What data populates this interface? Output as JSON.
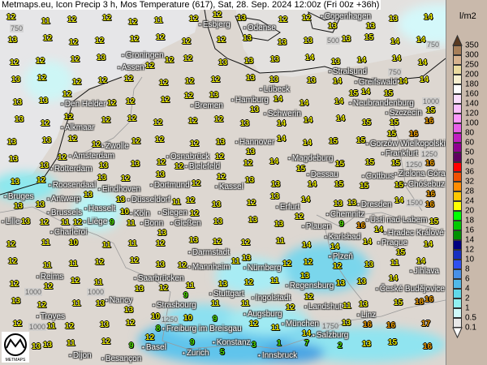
{
  "title": "Metmaps.eu, Icon Precip 3 h, Mos Temperature (617), Sat, 28. Sep. 2024 12:00z (Fri 00z +36h)",
  "logo_text": "METMAPS",
  "legend": {
    "unit": "l/m2",
    "labels": [
      "350",
      "300",
      "250",
      "200",
      "180",
      "160",
      "140",
      "120",
      "100",
      "80",
      "60",
      "50",
      "40",
      "36",
      "32",
      "28",
      "24",
      "20",
      "18",
      "16",
      "14",
      "12",
      "10",
      "8",
      "6",
      "4",
      "2",
      "1",
      "0.5",
      "0.1"
    ],
    "colors": [
      "#a8805a",
      "#d8b490",
      "#ecdca0",
      "#f8f0d0",
      "#ffffff",
      "#fce0fc",
      "#fcc0fc",
      "#fc98fc",
      "#e860e8",
      "#c020c0",
      "#900090",
      "#600060",
      "#ff0000",
      "#f05000",
      "#ff8c00",
      "#ffc800",
      "#ffff00",
      "#00ff00",
      "#00c800",
      "#009000",
      "#000080",
      "#1830c0",
      "#3050f0",
      "#4890e8",
      "#50b8e8",
      "#60d8e8",
      "#90f0f0",
      "#d0fafa",
      "#e8e8e8"
    ]
  },
  "temp_colors": {
    "cool": "#50e000",
    "mild": "#f0f000",
    "warm": "#f0a000"
  },
  "cities": [
    "Copenhagen",
    "Odense",
    "Esbjerg",
    "Stralsund",
    "Greifswald",
    "Lübeck",
    "Hamburg",
    "Bremen",
    "Groningen",
    "Assen",
    "Den Helder",
    "Alkmaar",
    "Zwolle",
    "Amsterdam",
    "Osnabrück",
    "Bielefeld",
    "Rotterdam",
    "Neubrandenburg",
    "Szczecin",
    "Gorzów Wielkopolski",
    "Frankfurt",
    "Zielona Góra",
    "Cottbus",
    "Chóśebuz",
    "Dessau",
    "Dresden",
    "Chemnitz",
    "Ústí nad Labem",
    "Plauen",
    "Karlsbad",
    "Prague",
    "Hradec Králové",
    "Plzeň",
    "Jihlava",
    "České Budějovice",
    "Linz",
    "Salzburg",
    "Innsbruck",
    "Regensburg",
    "Nürnberg",
    "Landshut",
    "Augsburg",
    "München",
    "Ingolstadt",
    "Roosendaal",
    "Eindhoven",
    "Antwerp",
    "Brussels",
    "Hasselt",
    "Liège",
    "Bruges",
    "Lille",
    "Charleroi",
    "Köln",
    "Bonn",
    "Düsseldorf",
    "Dortmund",
    "Kassel",
    "Gießen",
    "Siegen",
    "Erfurt",
    "Darmstadt",
    "Mannheim",
    "Saarbrücken",
    "Strasbourg",
    "Stuttgart",
    "Freiburg im Breisgau",
    "Basel",
    "Zurich",
    "Konstanz",
    "Reims",
    "Nancy",
    "Troyes",
    "Dijon",
    "Besançon",
    "Schwerin",
    "Magdeburg",
    "Hannover"
  ],
  "isobars": [
    "750",
    "500",
    "750",
    "750",
    "1000",
    "1250",
    "1250",
    "1500",
    "1000",
    "1000",
    "1250",
    "1000",
    "1750"
  ],
  "temperatures": [
    [
      12,
      11,
      12,
      12,
      12,
      11,
      12,
      12,
      13,
      12,
      12,
      13,
      13,
      13,
      14
    ],
    [
      13,
      12,
      12,
      12,
      12,
      12,
      12,
      12,
      13,
      13,
      13,
      13,
      15,
      14,
      14
    ],
    [
      12,
      12,
      12,
      13,
      12,
      12,
      12,
      13,
      13,
      13,
      14,
      13,
      14,
      14,
      14
    ],
    [
      13,
      12,
      12,
      12,
      12,
      12,
      12,
      12,
      13,
      13,
      13,
      14,
      14,
      14,
      14
    ],
    [
      13,
      13,
      12,
      12,
      12,
      12,
      12,
      13,
      13,
      14,
      14,
      14,
      15,
      15,
      15
    ],
    [
      13,
      12,
      12,
      12,
      12,
      12,
      12,
      12,
      13,
      14,
      14,
      14,
      15,
      15,
      16
    ],
    [
      13,
      13,
      12,
      12,
      12,
      12,
      12,
      13,
      13,
      14,
      14,
      15,
      15,
      15,
      16
    ],
    [
      13,
      13,
      12,
      13,
      13,
      12,
      12,
      12,
      12,
      14,
      15,
      15,
      15,
      15,
      16
    ],
    [
      13,
      12,
      13,
      13,
      12,
      13,
      12,
      12,
      13,
      13,
      14,
      15,
      15,
      15,
      16
    ],
    [
      13,
      13,
      12,
      13,
      10,
      11,
      12,
      13,
      12,
      13,
      14,
      13,
      13,
      14,
      16
    ],
    [
      13,
      12,
      11,
      9,
      11,
      13,
      12,
      13,
      13,
      13,
      12,
      9,
      16,
      14,
      15
    ],
    [
      12,
      11,
      10,
      11,
      11,
      12,
      13,
      12,
      12,
      11,
      14,
      14,
      14,
      15,
      14
    ],
    [
      12,
      11,
      11,
      12,
      12,
      13,
      12,
      11,
      13,
      12,
      12,
      12,
      13,
      11,
      14
    ],
    [
      12,
      12,
      12,
      11,
      13,
      12,
      11,
      13,
      12,
      11,
      13,
      13,
      13,
      14,
      16
    ],
    [
      13,
      12,
      11,
      13,
      13,
      10,
      9,
      11,
      11,
      12,
      12,
      11,
      13,
      15,
      18
    ],
    [
      12,
      11,
      12,
      13,
      12,
      8,
      10,
      9,
      12,
      11,
      14,
      13,
      16,
      16,
      17
    ],
    [
      13,
      13,
      11,
      12,
      9,
      12,
      9,
      5,
      3,
      1,
      7,
      2,
      13,
      15,
      16
    ]
  ]
}
